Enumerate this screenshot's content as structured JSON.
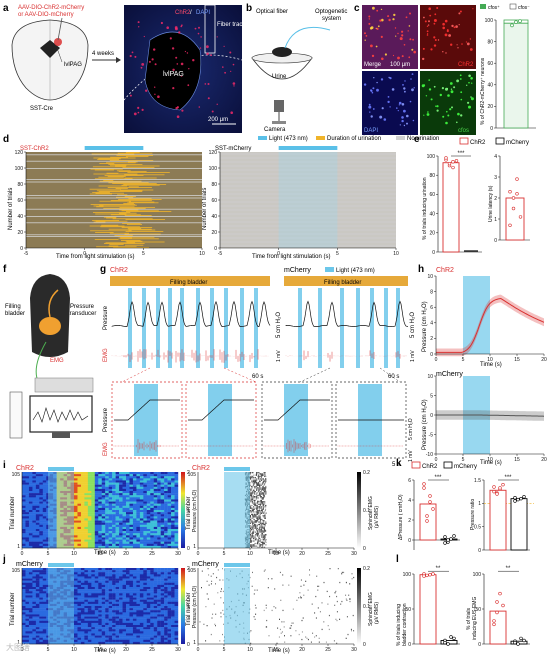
{
  "panel_labels": {
    "a": "a",
    "b": "b",
    "c": "c",
    "d": "d",
    "e": "e",
    "f": "f",
    "g": "g",
    "h": "h",
    "i": "i",
    "j": "j",
    "k": "k",
    "l": "l"
  },
  "panel_a": {
    "virus_line1": "AAV-DIO-ChR2-mCherry",
    "virus_line2": "or AAV-DIO-mCherry",
    "mouse_label": "SST-Cre",
    "region_label": "lvlPAG",
    "arrow_label": "4 weeks",
    "micro_chr2": "ChR2",
    "micro_sep": " / ",
    "micro_dapi": "DAPI",
    "fiber_label": "Fiber track",
    "micro_region": "lvlPAG",
    "scale": "200 μm"
  },
  "panel_b": {
    "fiber": "Optical fiber",
    "system_line1": "Optogenetic",
    "system_line2": "system",
    "urine": "Urine",
    "camera": "Camera"
  },
  "panel_c": {
    "merge": "Merge",
    "scale": "100 μm",
    "chr2": "ChR2",
    "dapi": "DAPI",
    "cfos": "cfos",
    "legend_pos": "cfos⁺",
    "legend_neg": "cfos⁻",
    "ylabel": "% of ChR2-mCherry⁺ neurons",
    "yticks": [
      "0",
      "20",
      "40",
      "60",
      "80",
      "100"
    ],
    "bar_value": 97,
    "points": [
      95,
      98,
      99
    ]
  },
  "panel_d": {
    "legend_light": "Light (473 nm)",
    "legend_urination": "Duration of urination",
    "legend_none": "No urination",
    "left_title": "SST-ChR2",
    "right_title": "SST-mCherry",
    "ylabel": "Number of trials",
    "xlabel": "Time from light stimulation (s)",
    "xticks": [
      "-5",
      "0",
      "5",
      "10"
    ],
    "yticks": [
      "0",
      "20",
      "40",
      "60",
      "80",
      "100",
      "120"
    ],
    "n_trials": 120,
    "colors": {
      "light": "#5ac0e8",
      "urination": "#f0b42a",
      "none": "#d2d2d2",
      "bg": "#8c7b55"
    }
  },
  "panel_e": {
    "legend_chr2": "ChR2",
    "legend_mcherry": "mCherry",
    "sig": "***",
    "left_ylabel": "% of trials inducing urination",
    "left_yticks": [
      "0",
      "20",
      "40",
      "60",
      "80",
      "100"
    ],
    "chr2_value": 93,
    "chr2_points": [
      96,
      90,
      88,
      95,
      98,
      92,
      94
    ],
    "mcherry_value": 0,
    "right_ylabel": "Urine latency (s)",
    "right_yticks": [
      "0",
      "1",
      "2",
      "3",
      "4"
    ],
    "latency_value": 2.0,
    "latency_points": [
      2.3,
      1.5,
      2.9,
      1.1,
      0.7,
      2.0,
      2.2
    ]
  },
  "panel_f": {
    "filling": "Filling",
    "bladder": "bladder",
    "pressure": "Pressure",
    "transducer": "transducer",
    "emg": "EMG"
  },
  "panel_g": {
    "chr2": "ChR2",
    "mcherry": "mCherry",
    "legend_light": "Light (473 nm)",
    "filling": "Filling bladder",
    "pressure": "Pressure",
    "emg": "EMG",
    "scale_p": "5 cm H₂O",
    "scale_emg": "1 mV",
    "scale_t": "60 s",
    "scale_t2": "5 s"
  },
  "panel_h": {
    "chr2": "ChR2",
    "mcherry": "mCherry",
    "ylabel": "Pressure (cm H₂O)",
    "xlabel": "Time (s)",
    "top_yticks": [
      "0",
      "2",
      "4",
      "6",
      "8",
      "10"
    ],
    "bottom_yticks": [
      "-10",
      "-5",
      "0",
      "5",
      "10"
    ],
    "xticks": [
      "0",
      "5",
      "10",
      "15",
      "20"
    ]
  },
  "panel_i": {
    "chr2_left": "ChR2",
    "chr2_right": "ChR2",
    "ylabel": "Trial number",
    "xlabel": "Time (s)",
    "yticks": [
      "1",
      "105"
    ],
    "xticks": [
      "0",
      "5",
      "10",
      "15",
      "20",
      "25",
      "30"
    ],
    "cbar_label": "Pressure (cm H₂O)",
    "cbar_ticks": [
      "0",
      "1",
      "2"
    ],
    "emg_label_line1": "Sphincter EMG",
    "emg_label_line2": "(μV RMS)",
    "emg_ticks": [
      "0",
      "0.1",
      "0.2"
    ]
  },
  "panel_j": {
    "mcherry_left": "mCherry",
    "mcherry_right": "mCherry",
    "ylabel": "Trial number",
    "xlabel": "Time (s)",
    "yticks": [
      "1",
      "105"
    ],
    "xticks": [
      "0",
      "5",
      "10",
      "15",
      "20",
      "25",
      "30"
    ],
    "cbar_label": "Pressure (cm H₂O)",
    "cbar_ticks": [
      "0",
      "1",
      "2"
    ],
    "emg_label_line1": "Sphincter EMG",
    "emg_label_line2": "(μV RMS)",
    "emg_ticks": [
      "0",
      "0.1",
      "0.2"
    ]
  },
  "panel_k": {
    "legend_chr2": "ChR2",
    "legend_mcherry": "mCherry",
    "sig_left": "***",
    "sig_right": "***",
    "left_ylabel": "ΔPressure ( cmH₂O)",
    "left_yticks": [
      "0",
      "2",
      "4",
      "6"
    ],
    "chr2_value": 3.6,
    "chr2_points": [
      5.2,
      2.4,
      4.4,
      3.1,
      5.6,
      1.9,
      3.8
    ],
    "mcherry_value": 0.1,
    "mcherry_points": [
      0.3,
      -0.2,
      0.1,
      0.4,
      -0.3,
      0.0
    ],
    "right_ylabel": "Pressure ratio",
    "right_yticks": [
      "0",
      "0.5",
      "1",
      "1.5"
    ],
    "ratio_chr2": 1.28,
    "ratio_chr2_points": [
      1.35,
      1.22,
      1.3,
      1.4,
      1.25,
      1.2,
      1.33
    ],
    "ratio_mcherry": 1.1,
    "ratio_mcherry_points": [
      1.12,
      1.08,
      1.1,
      1.14,
      1.05
    ],
    "ref_line": 1.0
  },
  "panel_l": {
    "sig_left": "**",
    "sig_right": "**",
    "left_ylabel_line1": "% of trials inducing",
    "left_ylabel_line2": "bladder contraction",
    "left_yticks": [
      "0",
      "50",
      "100"
    ],
    "chr2_value": 99,
    "chr2_points": [
      100,
      98,
      99,
      100,
      97
    ],
    "mcherry_value": 5,
    "mcherry_points": [
      5,
      0,
      10,
      8,
      2
    ],
    "right_ylabel_line1": "% of trials",
    "right_ylabel_line2": "inducing EUS-EMG",
    "right_yticks": [
      "0",
      "50",
      "100"
    ],
    "eus_chr2_value": 47,
    "eus_chr2_points": [
      28,
      45,
      72,
      55,
      33,
      60
    ],
    "eus_mcherry_value": 4,
    "eus_mcherry_points": [
      4,
      0,
      8,
      5,
      2
    ]
  },
  "watermark": "大图谱",
  "colors": {
    "chr2": "#d93030",
    "mcherry": "#000000",
    "light": "#6cc7ea",
    "filling": "#e6a93a",
    "cfos_green": "#44aa55"
  }
}
